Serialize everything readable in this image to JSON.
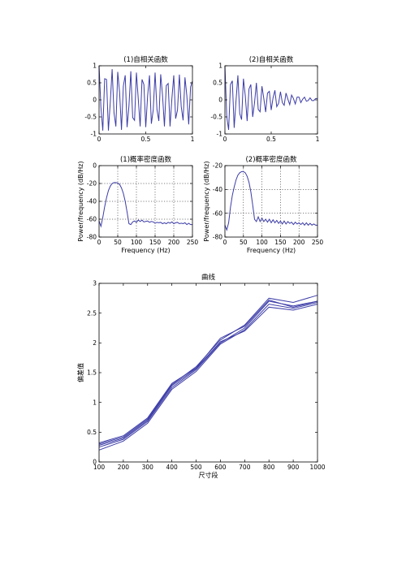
{
  "colors": {
    "line": "#3c3ca8",
    "axis": "#000000",
    "background": "#ffffff"
  },
  "chart_data": [
    {
      "id": "autocorr1",
      "type": "line",
      "title": "(1)自相关函数",
      "xlabel": "",
      "ylabel": "",
      "xlim": [
        0,
        1
      ],
      "ylim": [
        -1,
        1
      ],
      "xticks": [
        0,
        0.5,
        1
      ],
      "xtick_labels": [
        "0",
        "0.5",
        "1"
      ],
      "yticks": [
        -1,
        -0.5,
        0,
        0.5,
        1
      ],
      "ytick_labels": [
        "-1",
        "-0.5",
        "0",
        "0.5",
        "1"
      ],
      "grid": false,
      "series": [
        {
          "x": [
            0,
            0.02,
            0.04,
            0.06,
            0.08,
            0.1,
            0.12,
            0.14,
            0.16,
            0.18,
            0.2,
            0.22,
            0.24,
            0.26,
            0.28,
            0.3,
            0.32,
            0.34,
            0.36,
            0.38,
            0.4,
            0.42,
            0.44,
            0.46,
            0.48,
            0.5,
            0.52,
            0.54,
            0.56,
            0.58,
            0.6,
            0.62,
            0.64,
            0.66,
            0.68,
            0.7,
            0.72,
            0.74,
            0.76,
            0.78,
            0.8,
            0.82,
            0.84,
            0.86,
            0.88,
            0.9,
            0.92,
            0.94,
            0.96,
            0.98,
            1
          ],
          "values": [
            1,
            -0.22,
            -0.9,
            0.62,
            0.6,
            -0.9,
            -0.08,
            0.9,
            -0.38,
            -0.78,
            0.82,
            0.22,
            -0.88,
            0.4,
            0.72,
            -0.8,
            -0.18,
            0.84,
            -0.52,
            -0.6,
            0.8,
            0.02,
            -0.78,
            0.6,
            0.45,
            -0.8,
            0.12,
            0.72,
            -0.7,
            -0.3,
            0.8,
            -0.28,
            -0.62,
            0.75,
            0.12,
            -0.78,
            0.42,
            0.48,
            -0.78,
            0.04,
            0.72,
            -0.55,
            -0.3,
            0.74,
            -0.2,
            -0.6,
            0.66,
            0.12,
            -0.72,
            0.38,
            0.55
          ]
        }
      ]
    },
    {
      "id": "autocorr2",
      "type": "line",
      "title": "(2)自相关函数",
      "xlabel": "",
      "ylabel": "",
      "xlim": [
        0,
        1
      ],
      "ylim": [
        -1,
        1
      ],
      "xticks": [
        0,
        0.5,
        1
      ],
      "xtick_labels": [
        "0",
        "0.5",
        "1"
      ],
      "yticks": [
        -1,
        -0.5,
        0,
        0.5,
        1
      ],
      "ytick_labels": [
        "-1",
        "-0.5",
        "0",
        "0.5",
        "1"
      ],
      "grid": false,
      "series": [
        {
          "x": [
            0,
            0.02,
            0.04,
            0.06,
            0.08,
            0.1,
            0.12,
            0.14,
            0.16,
            0.18,
            0.2,
            0.22,
            0.24,
            0.26,
            0.28,
            0.3,
            0.32,
            0.34,
            0.36,
            0.38,
            0.4,
            0.42,
            0.44,
            0.46,
            0.48,
            0.5,
            0.52,
            0.54,
            0.56,
            0.58,
            0.6,
            0.62,
            0.64,
            0.66,
            0.68,
            0.7,
            0.72,
            0.74,
            0.76,
            0.78,
            0.8,
            0.82,
            0.84,
            0.86,
            0.88,
            0.9,
            0.92,
            0.94,
            0.96,
            0.98,
            1
          ],
          "values": [
            1,
            -0.5,
            -0.88,
            0.45,
            0.56,
            -0.82,
            -0.02,
            0.72,
            -0.4,
            -0.58,
            0.62,
            0.12,
            -0.62,
            0.32,
            0.45,
            -0.5,
            -0.08,
            0.5,
            -0.28,
            -0.35,
            0.4,
            0.04,
            -0.36,
            0.2,
            0.25,
            -0.3,
            0.06,
            0.28,
            -0.2,
            -0.1,
            0.24,
            -0.08,
            -0.16,
            0.2,
            0.02,
            -0.14,
            0.14,
            0.04,
            -0.12,
            0.08,
            0.08,
            -0.08,
            0.02,
            0.08,
            -0.04,
            -0.02,
            0.06,
            -0.02,
            -0.02,
            0.04,
            0.04
          ]
        }
      ]
    },
    {
      "id": "psd1",
      "type": "line",
      "title": "(1)概率密度函数",
      "xlabel": "Frequency (Hz)",
      "ylabel": "Power/frequency (dB/Hz)",
      "xlim": [
        0,
        250
      ],
      "ylim": [
        -80,
        0
      ],
      "xticks": [
        0,
        50,
        100,
        150,
        200,
        250
      ],
      "xtick_labels": [
        "0",
        "50",
        "100",
        "150",
        "200",
        "250"
      ],
      "yticks": [
        -80,
        -60,
        -40,
        -20,
        0
      ],
      "ytick_labels": [
        "-80",
        "-60",
        "-40",
        "-20",
        "0"
      ],
      "grid": true,
      "series": [
        {
          "x": [
            0,
            5,
            10,
            15,
            20,
            25,
            30,
            35,
            40,
            45,
            50,
            55,
            60,
            65,
            70,
            75,
            80,
            85,
            90,
            95,
            100,
            105,
            110,
            115,
            120,
            125,
            130,
            135,
            140,
            145,
            150,
            155,
            160,
            165,
            170,
            175,
            180,
            185,
            190,
            195,
            200,
            205,
            210,
            215,
            220,
            225,
            230,
            235,
            240,
            245,
            250
          ],
          "values": [
            -62,
            -68,
            -58,
            -46,
            -36,
            -28,
            -23,
            -20,
            -19,
            -19,
            -19.5,
            -21,
            -25,
            -31,
            -40,
            -52,
            -65,
            -66,
            -63,
            -62,
            -63.5,
            -61,
            -62.5,
            -61,
            -63,
            -62.5,
            -62,
            -63.5,
            -62.5,
            -63,
            -64.5,
            -63.5,
            -64,
            -63.5,
            -65,
            -64,
            -65,
            -63.5,
            -64.5,
            -63,
            -65,
            -64,
            -63.5,
            -65,
            -64.5,
            -65,
            -64,
            -66,
            -64.5,
            -66,
            -66
          ]
        }
      ]
    },
    {
      "id": "psd2",
      "type": "line",
      "title": "(2)概率密度函数",
      "xlabel": "Frequency (Hz)",
      "ylabel": "Power/frequency (dB/Hz)",
      "xlim": [
        0,
        250
      ],
      "ylim": [
        -80,
        -20
      ],
      "xticks": [
        0,
        50,
        100,
        150,
        200,
        250
      ],
      "xtick_labels": [
        "0",
        "50",
        "100",
        "150",
        "200",
        "250"
      ],
      "yticks": [
        -80,
        -60,
        -40,
        -20
      ],
      "ytick_labels": [
        "-80",
        "-60",
        "-40",
        "-20"
      ],
      "grid": true,
      "series": [
        {
          "x": [
            0,
            5,
            10,
            15,
            20,
            25,
            30,
            35,
            40,
            45,
            50,
            55,
            60,
            65,
            70,
            75,
            80,
            85,
            90,
            95,
            100,
            105,
            110,
            115,
            120,
            125,
            130,
            135,
            140,
            145,
            150,
            155,
            160,
            165,
            170,
            175,
            180,
            185,
            190,
            195,
            200,
            205,
            210,
            215,
            220,
            225,
            230,
            235,
            240,
            245,
            250
          ],
          "values": [
            -70,
            -74,
            -68,
            -55,
            -45,
            -38,
            -32,
            -28,
            -26,
            -25,
            -25,
            -26,
            -29,
            -34,
            -42,
            -53,
            -65,
            -67,
            -63,
            -67,
            -64,
            -67,
            -65,
            -67.5,
            -65,
            -68,
            -65.5,
            -68,
            -66,
            -68.5,
            -66.5,
            -69,
            -66.5,
            -69,
            -67,
            -68.5,
            -67.5,
            -69.5,
            -67.5,
            -69,
            -68,
            -69.5,
            -68,
            -70,
            -68,
            -70,
            -68.5,
            -70,
            -69,
            -70,
            -70
          ]
        }
      ]
    },
    {
      "id": "curves",
      "type": "line",
      "title": "曲线",
      "xlabel": "尺寸段",
      "ylabel": "偏差值",
      "xlim": [
        100,
        1000
      ],
      "ylim": [
        0,
        3
      ],
      "xticks": [
        100,
        200,
        300,
        400,
        500,
        600,
        700,
        800,
        900,
        1000
      ],
      "xtick_labels": [
        "100",
        "200",
        "300",
        "400",
        "500",
        "600",
        "700",
        "800",
        "900",
        "1000"
      ],
      "yticks": [
        0,
        0.5,
        1,
        1.5,
        2,
        2.5,
        3
      ],
      "ytick_labels": [
        "0",
        "0.5",
        "1",
        "1.5",
        "2",
        "2.5",
        "3"
      ],
      "grid": false,
      "series": [
        {
          "x": [
            100,
            200,
            300,
            400,
            500,
            600,
            700,
            800,
            900,
            1000
          ],
          "values": [
            0.3,
            0.42,
            0.72,
            1.3,
            1.6,
            2.05,
            2.3,
            2.75,
            2.68,
            2.8
          ]
        },
        {
          "x": [
            100,
            200,
            300,
            400,
            500,
            600,
            700,
            800,
            900,
            1000
          ],
          "values": [
            0.25,
            0.38,
            0.68,
            1.25,
            1.55,
            2.0,
            2.25,
            2.7,
            2.62,
            2.7
          ]
        },
        {
          "x": [
            100,
            200,
            300,
            400,
            500,
            600,
            700,
            800,
            900,
            1000
          ],
          "values": [
            0.2,
            0.35,
            0.65,
            1.22,
            1.52,
            1.98,
            2.22,
            2.65,
            2.58,
            2.68
          ]
        },
        {
          "x": [
            100,
            200,
            300,
            400,
            500,
            600,
            700,
            800,
            900,
            1000
          ],
          "values": [
            0.32,
            0.44,
            0.74,
            1.32,
            1.58,
            2.08,
            2.28,
            2.72,
            2.6,
            2.7
          ]
        },
        {
          "x": [
            100,
            200,
            300,
            400,
            500,
            600,
            700,
            800,
            900,
            1000
          ],
          "values": [
            0.28,
            0.4,
            0.7,
            1.28,
            1.57,
            2.02,
            2.2,
            2.6,
            2.55,
            2.65
          ]
        }
      ]
    }
  ]
}
